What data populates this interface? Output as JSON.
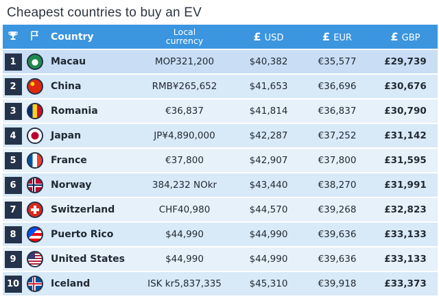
{
  "title": "Cheapest countries to buy an EV",
  "chart_data": {
    "type": "table",
    "title": "Cheapest countries to buy an EV",
    "columns": [
      "Country",
      "Local currency",
      "USD",
      "EUR",
      "GBP"
    ],
    "currency_symbol": "£",
    "rows": [
      {
        "rank": "1",
        "country": "Macau",
        "local": "MOP321,200",
        "usd": "$40,382",
        "eur": "€35,577",
        "gbp": "£29,739",
        "flag": "macau-flag-icon",
        "flag_colors": [
          "#1f8a4c",
          "#ffffff"
        ]
      },
      {
        "rank": "2",
        "country": "China",
        "local": "RMB¥265,652",
        "usd": "$41,653",
        "eur": "€36,696",
        "gbp": "£30,676",
        "flag": "china-flag-icon",
        "flag_colors": [
          "#de2910",
          "#ffde00"
        ]
      },
      {
        "rank": "3",
        "country": "Romania",
        "local": "€36,837",
        "usd": "$41,814",
        "eur": "€36,837",
        "gbp": "£30,790",
        "flag": "romania-flag-icon",
        "flag_colors": [
          "#002b7f",
          "#fcd116",
          "#ce1126"
        ]
      },
      {
        "rank": "4",
        "country": "Japan",
        "local": "JP¥4,890,000",
        "usd": "$42,287",
        "eur": "€37,252",
        "gbp": "£31,142",
        "flag": "japan-flag-icon",
        "flag_colors": [
          "#ffffff",
          "#bc002d"
        ]
      },
      {
        "rank": "5",
        "country": "France",
        "local": "€37,800",
        "usd": "$42,907",
        "eur": "€37,800",
        "gbp": "£31,595",
        "flag": "france-flag-icon",
        "flag_colors": [
          "#0055a4",
          "#ffffff",
          "#ef4135"
        ]
      },
      {
        "rank": "6",
        "country": "Norway",
        "local": "384,232 NOkr",
        "usd": "$43,440",
        "eur": "€38,270",
        "gbp": "£31,991",
        "flag": "norway-flag-icon",
        "flag_colors": [
          "#ba0c2f",
          "#ffffff",
          "#00205b"
        ]
      },
      {
        "rank": "7",
        "country": "Switzerland",
        "local": "CHF40,980",
        "usd": "$44,570",
        "eur": "€39,268",
        "gbp": "£32,823",
        "flag": "switzerland-flag-icon",
        "flag_colors": [
          "#da291c",
          "#ffffff"
        ]
      },
      {
        "rank": "8",
        "country": "Puerto Rico",
        "local": "$44,990",
        "usd": "$44,990",
        "eur": "€39,636",
        "gbp": "£33,133",
        "flag": "puerto-rico-flag-icon",
        "flag_colors": [
          "#ed0000",
          "#ffffff",
          "#0050f0"
        ]
      },
      {
        "rank": "9",
        "country": "United States",
        "local": "$44,990",
        "usd": "$44,990",
        "eur": "€39,636",
        "gbp": "£33,133",
        "flag": "united-states-flag-icon",
        "flag_colors": [
          "#b22234",
          "#ffffff",
          "#3c3b6e"
        ]
      },
      {
        "rank": "10",
        "country": "Iceland",
        "local": "ISK kr5,837,335",
        "usd": "$45,310",
        "eur": "€39,918",
        "gbp": "£33,373",
        "flag": "iceland-flag-icon",
        "flag_colors": [
          "#02529c",
          "#ffffff",
          "#dc1e35"
        ]
      }
    ]
  },
  "colors": {
    "header_bg": "#3b95df",
    "rank_bg": "#24324a",
    "row_odd": "#e7f1fa",
    "row_even": "#d8e9f7"
  }
}
